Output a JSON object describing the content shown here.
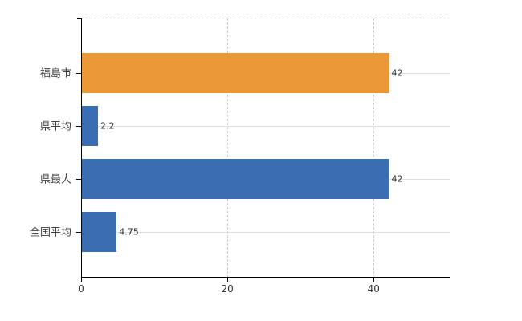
{
  "chart_data": {
    "type": "bar",
    "orientation": "horizontal",
    "title": "",
    "xlabel": "",
    "ylabel": "",
    "categories": [
      "福島市",
      "県平均",
      "県最大",
      "全国平均"
    ],
    "values": [
      42,
      2.2,
      42,
      4.75
    ],
    "value_labels": [
      "42",
      "2.2",
      "42",
      "4.75"
    ],
    "bar_colors": [
      "#EB9837",
      "#3B6DB1",
      "#3B6DB1",
      "#3B6DB1"
    ],
    "xlim": [
      0,
      50.4
    ],
    "x_ticks": [
      0,
      20,
      40
    ],
    "x_tick_labels": [
      "0",
      "20",
      "40"
    ],
    "grid": true,
    "legend": false,
    "colors": {
      "orange_bar": "#EB9837",
      "blue_bar": "#3B6DB1",
      "axis_line": "#000000",
      "vertical_gridline": "#cccccc",
      "category_gridline": "#dbe2d8",
      "top_border": "#c9c9c9",
      "text": "#333333"
    }
  }
}
